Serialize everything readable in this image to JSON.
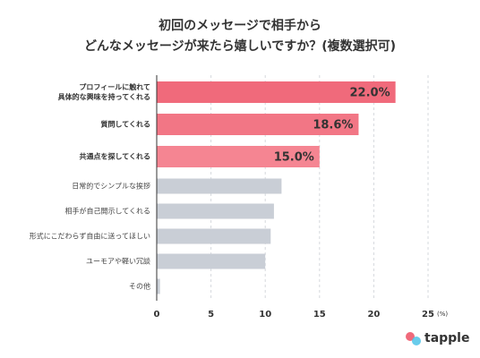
{
  "chart_data": {
    "type": "hbar",
    "title": "初回のメッセージで相手から\nどんなメッセージが来たら嬉しいですか？(複数選択可)",
    "categories": [
      "プロフィールに触れて\n具体的な興味を持ってくれる",
      "質問してくれる",
      "共通点を探してくれる",
      "日常的でシンプルな挨拶",
      "相手が自己開示してくれる",
      "形式にこだわらず自由に送ってほしい",
      "ユーモアや軽い冗談",
      "その他"
    ],
    "values": [
      22.0,
      18.6,
      15.0,
      11.5,
      10.8,
      10.5,
      10.0,
      0.3
    ],
    "value_labels": [
      "22.0%",
      "18.6%",
      "15.0%",
      null,
      null,
      null,
      null,
      null
    ],
    "colors": [
      "#f06a7b",
      "#f27685",
      "#f58592",
      "#c9ced6",
      "#c9ced6",
      "#c9ced6",
      "#c9ced6",
      "#c9ced6"
    ],
    "xlim": [
      0,
      25
    ],
    "xticks": [
      0,
      5,
      10,
      15,
      20,
      25
    ],
    "x_unit": "(%)",
    "grid": true,
    "brand": "tapple"
  }
}
